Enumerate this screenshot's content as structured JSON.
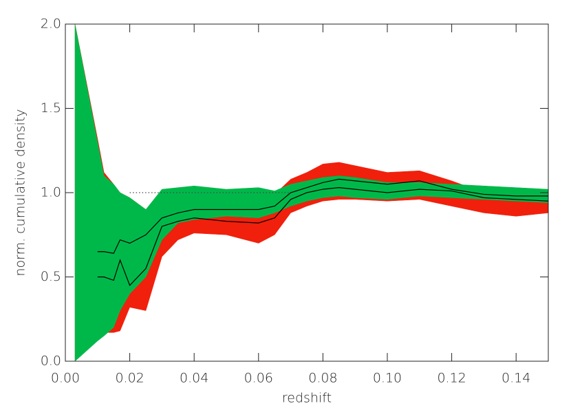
{
  "chart_data": {
    "type": "band",
    "x_label": "redshift",
    "y_label": "norm. cumulative density",
    "xlim": [
      0,
      0.15
    ],
    "ylim": [
      0,
      2
    ],
    "xticks": [
      {
        "value": 0,
        "label": "0.00"
      },
      0.02,
      0.04,
      0.06,
      0.08,
      {
        "value": 0.1,
        "label": "0.10"
      },
      0.12,
      0.14
    ],
    "yticks": [
      {
        "value": 0,
        "label": "0.0"
      },
      0.5,
      {
        "value": 1,
        "label": "1.0"
      },
      1.5,
      {
        "value": 2,
        "label": "2.0"
      }
    ],
    "x": [
      0.003,
      0.01,
      0.012,
      0.015,
      0.017,
      0.02,
      0.025,
      0.03,
      0.035,
      0.04,
      0.05,
      0.06,
      0.065,
      0.07,
      0.075,
      0.08,
      0.085,
      0.09,
      0.1,
      0.11,
      0.12,
      0.13,
      0.14,
      0.15
    ],
    "bands": [
      {
        "color": "#f0200c",
        "upper": [
          2.0,
          1.32,
          1.12,
          1.05,
          1.0,
          0.97,
          0.9,
          1.0,
          1.0,
          1.02,
          1.0,
          1.0,
          0.99,
          1.08,
          1.12,
          1.17,
          1.18,
          1.16,
          1.12,
          1.13,
          1.07,
          1.0,
          0.98,
          0.96
        ],
        "lower": [
          0,
          0.14,
          0.17,
          0.17,
          0.18,
          0.32,
          0.3,
          0.62,
          0.72,
          0.76,
          0.75,
          0.7,
          0.75,
          0.88,
          0.92,
          0.95,
          0.96,
          0.96,
          0.95,
          0.96,
          0.92,
          0.88,
          0.86,
          0.88
        ]
      },
      {
        "color": "#00b84a",
        "upper": [
          2.0,
          1.3,
          1.1,
          1.05,
          1.0,
          0.97,
          0.9,
          1.02,
          1.03,
          1.04,
          1.02,
          1.03,
          1.01,
          1.05,
          1.07,
          1.09,
          1.1,
          1.09,
          1.06,
          1.06,
          1.05,
          1.04,
          1.03,
          1.02
        ],
        "lower": [
          0,
          0.12,
          0.15,
          0.2,
          0.3,
          0.4,
          0.5,
          0.72,
          0.82,
          0.84,
          0.86,
          0.85,
          0.88,
          0.92,
          0.95,
          0.97,
          0.98,
          0.97,
          0.96,
          0.98,
          0.97,
          0.96,
          0.95,
          0.94
        ]
      }
    ],
    "lines": [
      {
        "color": "#000000",
        "values": [
          null,
          0.65,
          0.65,
          0.64,
          0.72,
          0.7,
          0.75,
          0.85,
          0.88,
          0.9,
          0.9,
          0.9,
          0.92,
          1.0,
          1.03,
          1.06,
          1.08,
          1.07,
          1.05,
          1.07,
          1.02,
          0.99,
          0.98,
          0.98
        ]
      },
      {
        "color": "#000000",
        "values": [
          null,
          0.5,
          0.5,
          0.48,
          0.6,
          0.45,
          0.55,
          0.8,
          0.83,
          0.85,
          0.83,
          0.82,
          0.85,
          0.96,
          1.0,
          1.02,
          1.03,
          1.02,
          1.0,
          1.02,
          1.01,
          0.97,
          0.96,
          0.95
        ]
      }
    ],
    "reference": {
      "y": 1,
      "x": [
        0.02,
        0.07
      ]
    }
  }
}
